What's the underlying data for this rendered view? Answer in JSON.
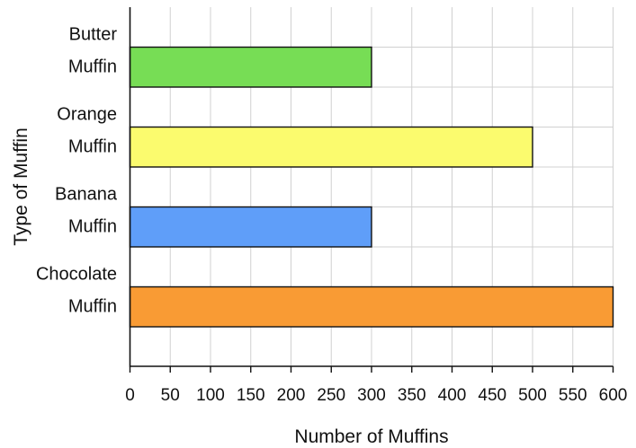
{
  "chart_data": {
    "type": "bar",
    "orientation": "horizontal",
    "categories": [
      [
        "Butter",
        "Muffin"
      ],
      [
        "Orange",
        "Muffin"
      ],
      [
        "Banana",
        "Muffin"
      ],
      [
        "Chocolate",
        "Muffin"
      ]
    ],
    "values": [
      300,
      500,
      300,
      600
    ],
    "colors": [
      "#77dd55",
      "#fbfb6e",
      "#5f9ef9",
      "#f99b34"
    ],
    "xlabel": "Number of Muffins",
    "ylabel": "Type of Muffin",
    "xlim": [
      0,
      600
    ],
    "xticks": [
      "0",
      "50",
      "100",
      "150",
      "200",
      "250",
      "300",
      "350",
      "400",
      "450",
      "500",
      "550",
      "600"
    ],
    "grid": true
  }
}
